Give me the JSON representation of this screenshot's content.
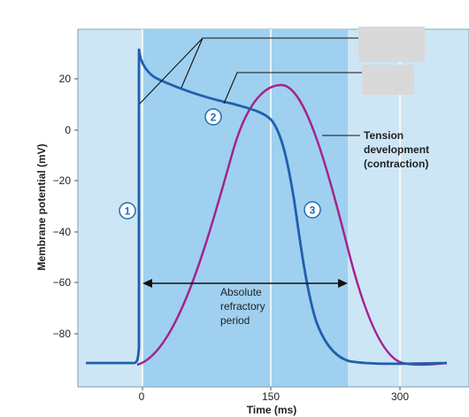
{
  "y_axis": {
    "label": "Membrane potential (mV)",
    "ticks": [
      "20",
      "0",
      "−20",
      "−40",
      "−60",
      "−80"
    ]
  },
  "x_axis": {
    "label": "Time (ms)",
    "ticks": [
      "0",
      "150",
      "300"
    ]
  },
  "annotations": {
    "tension_line1": "Tension",
    "tension_line2": "development",
    "tension_line3": "(contraction)",
    "refractory_line1": "Absolute",
    "refractory_line2": "refractory",
    "refractory_line3": "period"
  },
  "phase_markers": [
    "1",
    "2",
    "3"
  ],
  "colors": {
    "outer_background": "#cde6f5",
    "refractory_band": "#9fd0ef",
    "action_potential": "#1f5fad",
    "tension_curve": "#a3238f",
    "label_box": "#d9d9d9",
    "gridline": "#ffffff"
  }
}
